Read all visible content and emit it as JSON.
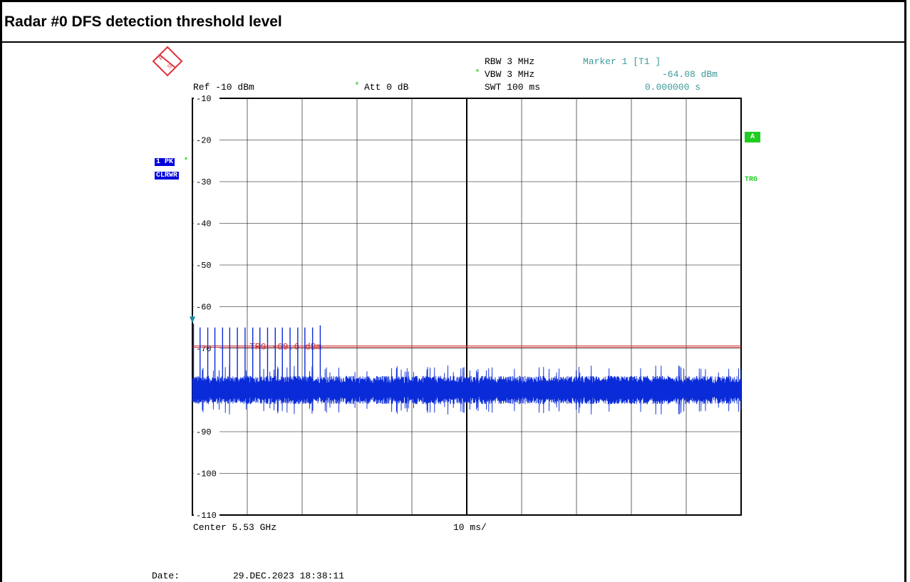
{
  "title": "Radar #0 DFS detection threshold level",
  "header": {
    "ref": "Ref -10 dBm",
    "att": "Att  0 dB",
    "rbw": "RBW 3 MHz",
    "vbw": "VBW 3 MHz",
    "swt": "SWT 100 ms",
    "marker_label": "Marker 1 [T1 ]",
    "marker_level": "-64.08 dBm",
    "marker_time": "0.000000 s",
    "star": "*"
  },
  "left_badges": {
    "trace_mode": "1 PK",
    "trace_clear": "CLRWR",
    "star": "*"
  },
  "right_badges": {
    "a": "A",
    "trg": "TRG"
  },
  "footer": {
    "center": "Center 5.53 GHz",
    "span": "10 ms/",
    "date_label": "Date:",
    "date_value": "29.DEC.2023  18:38:11"
  },
  "colors": {
    "trace": "#0a2bd8",
    "trigger_line": "#cc3333",
    "marker": "#1a8a9a",
    "grid": "#000000",
    "badge_blue": "#0000dd",
    "badge_green": "#22cc22"
  },
  "chart_data": {
    "type": "line",
    "x_unit": "ms",
    "x_range": [
      0,
      100
    ],
    "ylim": [
      -110,
      -10
    ],
    "yticks": [
      "-10",
      "-20",
      "-30",
      "-40",
      "-50",
      "-60",
      "-70",
      "-90",
      "-100",
      "-110"
    ],
    "ytick_values": [
      -10,
      -20,
      -30,
      -40,
      -50,
      -60,
      -70,
      -90,
      -100,
      -110
    ],
    "grid": true,
    "noise_floor_dbm": -80,
    "trigger": {
      "label": "TRG -69.6 dBm",
      "level_dbm": -69.6
    },
    "marker": {
      "name": "Marker 1 [T1 ]",
      "x_ms": 0,
      "level_dbm": -64.08
    },
    "pulses": [
      {
        "x_ms": 0.2,
        "peak_dbm": -64.08
      },
      {
        "x_ms": 1.4,
        "peak_dbm": -65
      },
      {
        "x_ms": 2.8,
        "peak_dbm": -65
      },
      {
        "x_ms": 4.1,
        "peak_dbm": -65
      },
      {
        "x_ms": 5.5,
        "peak_dbm": -65
      },
      {
        "x_ms": 6.8,
        "peak_dbm": -65
      },
      {
        "x_ms": 8.2,
        "peak_dbm": -65
      },
      {
        "x_ms": 9.6,
        "peak_dbm": -65
      },
      {
        "x_ms": 11.0,
        "peak_dbm": -65
      },
      {
        "x_ms": 12.3,
        "peak_dbm": -65
      },
      {
        "x_ms": 13.7,
        "peak_dbm": -65
      },
      {
        "x_ms": 15.1,
        "peak_dbm": -65
      },
      {
        "x_ms": 16.4,
        "peak_dbm": -65
      },
      {
        "x_ms": 17.8,
        "peak_dbm": -65
      },
      {
        "x_ms": 19.2,
        "peak_dbm": -65
      },
      {
        "x_ms": 20.5,
        "peak_dbm": -65
      },
      {
        "x_ms": 21.9,
        "peak_dbm": -65
      },
      {
        "x_ms": 23.3,
        "peak_dbm": -64.5
      }
    ]
  }
}
